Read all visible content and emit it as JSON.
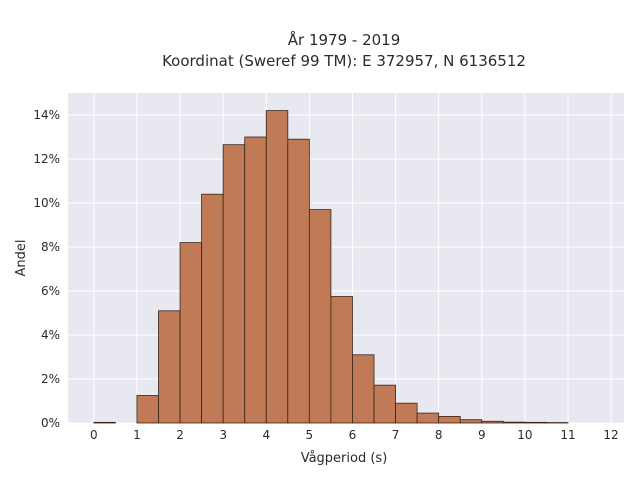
{
  "chart_data": {
    "type": "bar",
    "title_line1": "År 1979 - 2019",
    "title_line2": "Koordinat (Sweref 99 TM): E 372957, N 6136512",
    "xlabel": "Vågperiod (s)",
    "ylabel": "Andel",
    "xlim": [
      -0.6,
      12.3
    ],
    "ylim": [
      0,
      0.15
    ],
    "bin_width": 0.5,
    "x_ticks": [
      0,
      1,
      2,
      3,
      4,
      5,
      6,
      7,
      8,
      9,
      10,
      11,
      12
    ],
    "x_tick_labels": [
      "0",
      "1",
      "2",
      "3",
      "4",
      "5",
      "6",
      "7",
      "8",
      "9",
      "10",
      "11",
      "12"
    ],
    "y_ticks": [
      0,
      0.02,
      0.04,
      0.06,
      0.08,
      0.1,
      0.12,
      0.14
    ],
    "y_tick_labels": [
      "0%",
      "2%",
      "4%",
      "6%",
      "8%",
      "10%",
      "12%",
      "14%"
    ],
    "bin_starts": [
      0,
      1,
      1.5,
      2,
      2.5,
      3,
      3.5,
      4,
      4.5,
      5,
      5.5,
      6,
      6.5,
      7,
      7.5,
      8,
      8.5,
      9,
      9.5,
      10,
      10.5
    ],
    "values": [
      0.0003,
      0.0125,
      0.051,
      0.082,
      0.104,
      0.1265,
      0.13,
      0.142,
      0.129,
      0.097,
      0.0575,
      0.031,
      0.0172,
      0.009,
      0.0045,
      0.003,
      0.0015,
      0.0008,
      0.0004,
      0.0003,
      0.0002
    ],
    "bar_color": "#c07a55",
    "bar_edge_color": "#3a2418",
    "grid": true,
    "background_color": "#e8e8f0"
  }
}
